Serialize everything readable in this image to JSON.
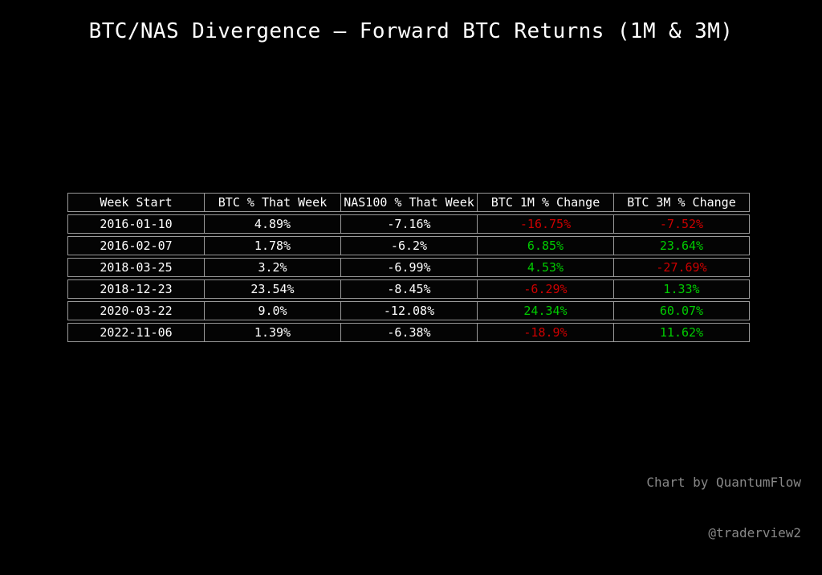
{
  "title": "BTC/NAS Divergence — Forward BTC Returns (1M & 3M)",
  "table": {
    "columns": [
      "Week Start",
      "BTC % That Week",
      "NAS100 % That Week",
      "BTC 1M % Change",
      "BTC 3M % Change"
    ],
    "rows": [
      {
        "values": [
          "2016-01-10",
          "4.89%",
          "-7.16%",
          "-16.75%",
          "-7.52%"
        ],
        "colors": [
          null,
          null,
          null,
          "neg",
          "neg"
        ]
      },
      {
        "values": [
          "2016-02-07",
          "1.78%",
          "-6.2%",
          "6.85%",
          "23.64%"
        ],
        "colors": [
          null,
          null,
          null,
          "pos",
          "pos"
        ]
      },
      {
        "values": [
          "2018-03-25",
          "3.2%",
          "-6.99%",
          "4.53%",
          "-27.69%"
        ],
        "colors": [
          null,
          null,
          null,
          "pos",
          "neg"
        ]
      },
      {
        "values": [
          "2018-12-23",
          "23.54%",
          "-8.45%",
          "-6.29%",
          "1.33%"
        ],
        "colors": [
          null,
          null,
          null,
          "neg",
          "pos"
        ]
      },
      {
        "values": [
          "2020-03-22",
          "9.0%",
          "-12.08%",
          "24.34%",
          "60.07%"
        ],
        "colors": [
          null,
          null,
          null,
          "pos",
          "pos"
        ]
      },
      {
        "values": [
          "2022-11-06",
          "1.39%",
          "-6.38%",
          "-18.9%",
          "11.62%"
        ],
        "colors": [
          null,
          null,
          null,
          "neg",
          "pos"
        ]
      }
    ]
  },
  "footer": {
    "line1": "Chart by QuantumFlow",
    "line2": "@traderview2"
  },
  "colors": {
    "background": "#000000",
    "text": "#ffffff",
    "border": "#999999",
    "positive": "#00cc00",
    "negative": "#cc0000",
    "footer_text": "#888888"
  },
  "chart_data": {
    "type": "table",
    "title": "BTC/NAS Divergence — Forward BTC Returns (1M & 3M)",
    "columns": [
      "Week Start",
      "BTC % That Week",
      "NAS100 % That Week",
      "BTC 1M % Change",
      "BTC 3M % Change"
    ],
    "rows": [
      [
        "2016-01-10",
        4.89,
        -7.16,
        -16.75,
        -7.52
      ],
      [
        "2016-02-07",
        1.78,
        -6.2,
        6.85,
        23.64
      ],
      [
        "2018-03-25",
        3.2,
        -6.99,
        4.53,
        -27.69
      ],
      [
        "2018-12-23",
        23.54,
        -8.45,
        -6.29,
        1.33
      ],
      [
        "2020-03-22",
        9.0,
        -12.08,
        24.34,
        60.07
      ],
      [
        "2022-11-06",
        1.39,
        -6.38,
        -18.9,
        11.62
      ]
    ],
    "value_color_rule": "negative returns red (#cc0000), positive returns green (#00cc00) in the two forward-change columns",
    "legend_position": "none",
    "attribution": "Chart by QuantumFlow @traderview2"
  }
}
